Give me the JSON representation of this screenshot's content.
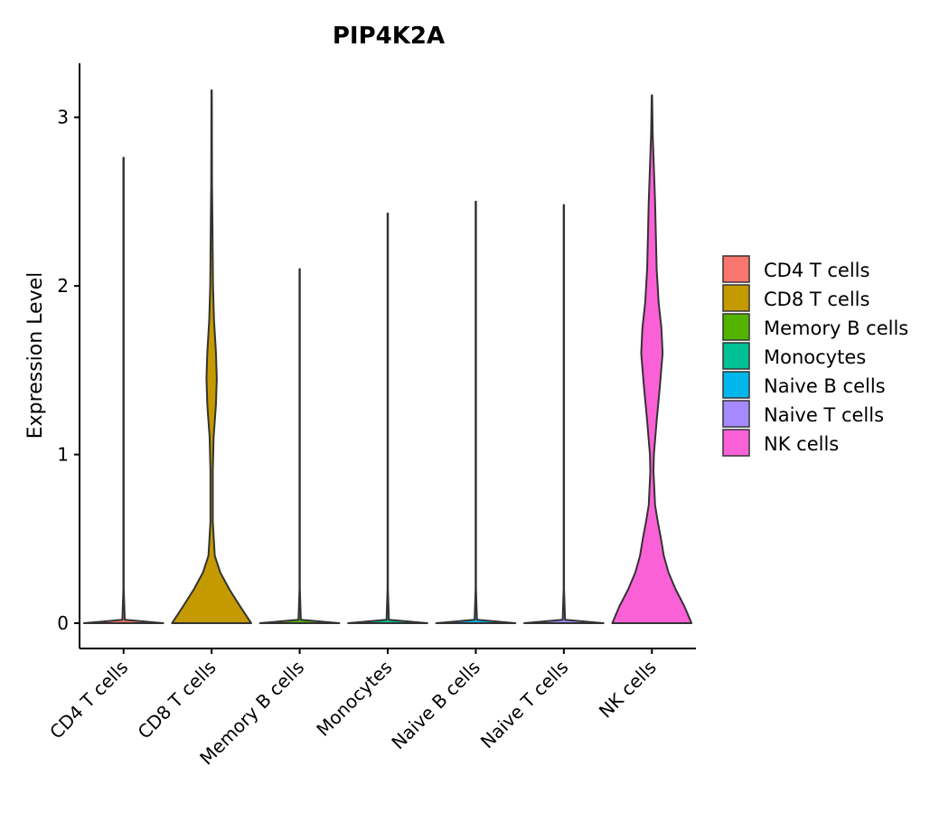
{
  "chart_data": {
    "type": "violin",
    "title": "PIP4K2A",
    "xlabel": "",
    "ylabel": "Expression Level",
    "ylim": [
      -0.15,
      3.32
    ],
    "yticks": [
      0,
      1,
      2,
      3
    ],
    "categories": [
      "CD4 T cells",
      "CD8 T cells",
      "Memory B cells",
      "Monocytes",
      "Naive B cells",
      "Naive T cells",
      "NK cells"
    ],
    "colors": [
      "#F8766D",
      "#C49A00",
      "#53B400",
      "#00C094",
      "#00B6EB",
      "#A58AFF",
      "#FB61D7"
    ],
    "max_values": [
      2.76,
      3.16,
      2.1,
      2.43,
      2.5,
      2.48,
      3.13
    ],
    "density_profiles": [
      [
        [
          0,
          1.0
        ],
        [
          0.02,
          0.03
        ],
        [
          0.2,
          0.005
        ],
        [
          2.76,
          0.005
        ]
      ],
      [
        [
          0,
          1.0
        ],
        [
          0.1,
          0.72
        ],
        [
          0.2,
          0.45
        ],
        [
          0.3,
          0.22
        ],
        [
          0.4,
          0.08
        ],
        [
          0.6,
          0.03
        ],
        [
          0.9,
          0.03
        ],
        [
          1.1,
          0.05
        ],
        [
          1.3,
          0.11
        ],
        [
          1.45,
          0.13
        ],
        [
          1.6,
          0.11
        ],
        [
          1.8,
          0.06
        ],
        [
          2.0,
          0.035
        ],
        [
          2.4,
          0.02
        ],
        [
          2.6,
          0.01
        ],
        [
          3.16,
          0.005
        ]
      ],
      [
        [
          0,
          1.0
        ],
        [
          0.02,
          0.03
        ],
        [
          0.2,
          0.005
        ],
        [
          2.1,
          0.005
        ]
      ],
      [
        [
          0,
          1.0
        ],
        [
          0.02,
          0.03
        ],
        [
          0.2,
          0.005
        ],
        [
          2.43,
          0.005
        ]
      ],
      [
        [
          0,
          1.0
        ],
        [
          0.02,
          0.03
        ],
        [
          0.2,
          0.005
        ],
        [
          2.5,
          0.005
        ]
      ],
      [
        [
          0,
          1.0
        ],
        [
          0.02,
          0.03
        ],
        [
          0.2,
          0.005
        ],
        [
          2.48,
          0.005
        ]
      ],
      [
        [
          0,
          1.0
        ],
        [
          0.1,
          0.82
        ],
        [
          0.2,
          0.6
        ],
        [
          0.3,
          0.42
        ],
        [
          0.4,
          0.3
        ],
        [
          0.5,
          0.23
        ],
        [
          0.6,
          0.15
        ],
        [
          0.7,
          0.08
        ],
        [
          0.9,
          0.04
        ],
        [
          1.0,
          0.05
        ],
        [
          1.2,
          0.12
        ],
        [
          1.4,
          0.2
        ],
        [
          1.6,
          0.27
        ],
        [
          1.75,
          0.24
        ],
        [
          1.9,
          0.17
        ],
        [
          2.1,
          0.12
        ],
        [
          2.3,
          0.1
        ],
        [
          2.5,
          0.08
        ],
        [
          2.7,
          0.05
        ],
        [
          2.9,
          0.02
        ],
        [
          3.13,
          0.005
        ]
      ]
    ],
    "legend": {
      "position": "right",
      "entries": [
        "CD4 T cells",
        "CD8 T cells",
        "Memory B cells",
        "Monocytes",
        "Naive B cells",
        "Naive T cells",
        "NK cells"
      ]
    }
  }
}
